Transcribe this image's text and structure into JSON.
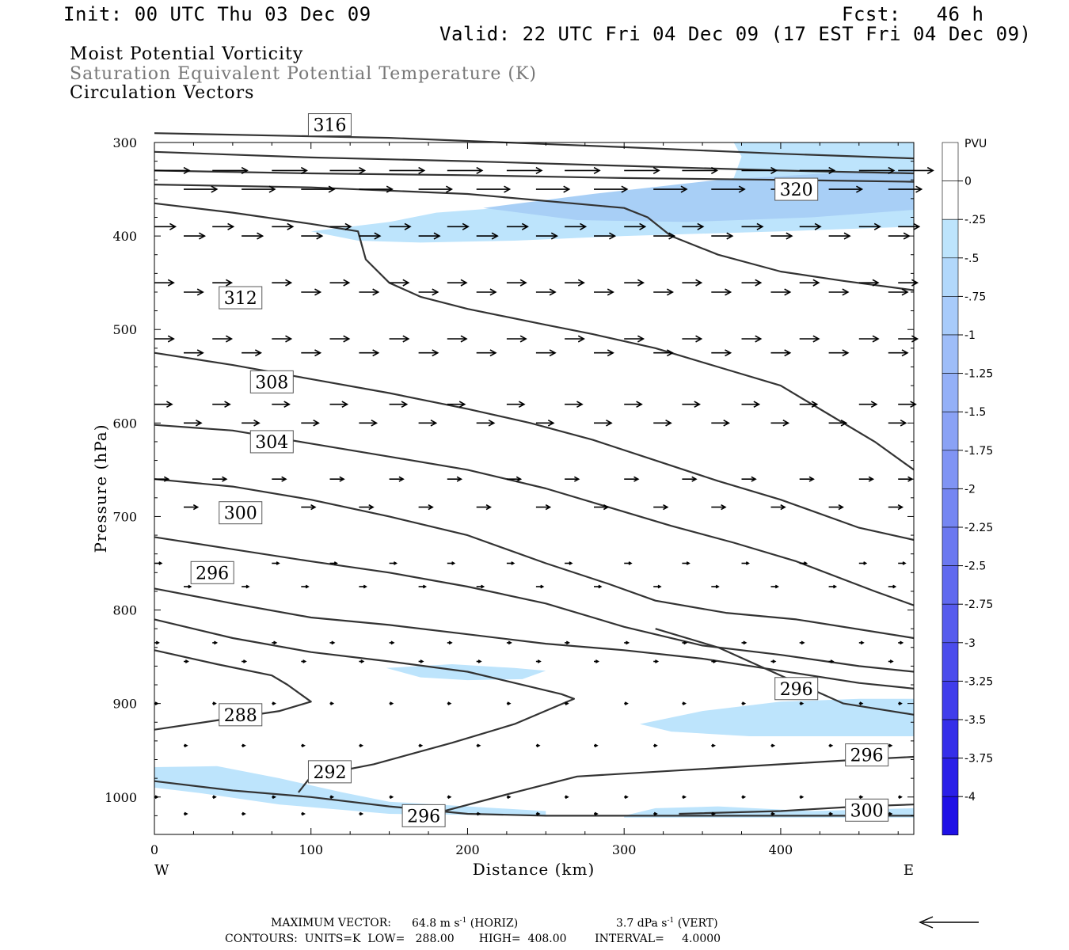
{
  "header": {
    "init": "Init: 00 UTC Thu 03 Dec 09",
    "fcst": "Fcst:   46 h",
    "valid": "Valid: 22 UTC Fri 04 Dec 09 (17 EST Fri 04 Dec 09)"
  },
  "titles": {
    "line1": "Moist Potential Vorticity",
    "line2": "Saturation Equivalent Potential Temperature (K)",
    "line3": "Circulation Vectors"
  },
  "footer": {
    "max_vector_label": "MAXIMUM VECTOR:",
    "max_vector_horiz_value": "64.8 m s",
    "max_vector_horiz_exp": "-1",
    "max_vector_horiz_tag": "(HORIZ)",
    "max_vector_vert_value": "3.7 dPa s",
    "max_vector_vert_exp": "-1",
    "max_vector_vert_tag": "(VERT)",
    "contours": "CONTOURS:  UNITS=K  LOW=   288.00       HIGH=  408.00        INTERVAL=     4.0000"
  },
  "colors": {
    "contour": "#333333",
    "pv_shade_light": "#bde4fc",
    "pv_shade_mid": "#a8cff6"
  },
  "chart_data": {
    "type": "contour",
    "xlabel": "Distance (km)",
    "ylabel": "Pressure (hPa)",
    "x_ticks": [
      0,
      100,
      200,
      300,
      400
    ],
    "y_ticks": [
      300,
      400,
      500,
      600,
      700,
      800,
      900,
      1000
    ],
    "xlim": [
      0,
      485
    ],
    "ylim": [
      300,
      1040
    ],
    "y_inverted": true,
    "x_end_labels": {
      "left": "W",
      "right": "E"
    },
    "colorbar": {
      "title": "PVU",
      "ticks": [
        "0",
        "-.25",
        "-.5",
        "-.75",
        "-1",
        "-1.25",
        "-1.5",
        "-1.75",
        "-2",
        "-2.25",
        "-2.5",
        "-2.75",
        "-3",
        "-3.25",
        "-3.5",
        "-3.75",
        "-4"
      ],
      "colors": [
        "#ffffff",
        "#ffffff",
        "#bde4fc",
        "#b2d8fb",
        "#a8cbfa",
        "#9ebdf8",
        "#94b0f7",
        "#8aa2f5",
        "#8094f4",
        "#7586f2",
        "#6b78f0",
        "#6069ef",
        "#565bed",
        "#4b4cec",
        "#403deb",
        "#352ee9",
        "#2a1fe8",
        "#1f10e6"
      ]
    },
    "theta_es_contours": [
      {
        "level": 288,
        "label": "288",
        "label_at": [
          55,
          912
        ],
        "points": [
          [
            0,
            928
          ],
          [
            40,
            918
          ],
          [
            80,
            908
          ],
          [
            100,
            898
          ],
          [
            85,
            880
          ],
          [
            75,
            870
          ],
          [
            40,
            858
          ],
          [
            0,
            843
          ]
        ]
      },
      {
        "level": 292,
        "label": "292",
        "label_at": [
          112,
          973
        ],
        "points": [
          [
            92,
            995
          ],
          [
            100,
            978
          ],
          [
            140,
            965
          ],
          [
            190,
            942
          ],
          [
            230,
            922
          ],
          [
            268,
            895
          ],
          [
            260,
            890
          ],
          [
            200,
            866
          ],
          [
            150,
            855
          ],
          [
            100,
            845
          ],
          [
            50,
            830
          ],
          [
            0,
            810
          ]
        ]
      },
      {
        "level": 296,
        "label": "296",
        "label_at": [
          37,
          760
        ],
        "points": [
          [
            0,
            777
          ],
          [
            50,
            793
          ],
          [
            100,
            808
          ],
          [
            150,
            816
          ],
          [
            200,
            826
          ],
          [
            250,
            836
          ],
          [
            300,
            843
          ],
          [
            350,
            852
          ],
          [
            400,
            865
          ],
          [
            450,
            878
          ],
          [
            485,
            884
          ]
        ]
      },
      {
        "level": 296,
        "label": "296",
        "label_at": [
          410,
          884
        ],
        "points": [
          [
            320,
            820
          ],
          [
            360,
            840
          ],
          [
            400,
            870
          ],
          [
            440,
            900
          ],
          [
            485,
            912
          ]
        ]
      },
      {
        "level": 296,
        "label": "296",
        "label_at": [
          455,
          955
        ],
        "points": [
          [
            185,
            1015
          ],
          [
            230,
            995
          ],
          [
            270,
            978
          ],
          [
            330,
            972
          ],
          [
            400,
            965
          ],
          [
            450,
            960
          ],
          [
            485,
            957
          ]
        ]
      },
      {
        "level": 296,
        "label": "296",
        "label_at": [
          172,
          1020
        ],
        "points": [
          [
            0,
            983
          ],
          [
            50,
            993
          ],
          [
            100,
            1000
          ],
          [
            150,
            1010
          ],
          [
            200,
            1018
          ],
          [
            250,
            1020
          ],
          [
            300,
            1020
          ],
          [
            485,
            1020
          ]
        ]
      },
      {
        "level": 300,
        "label": "300",
        "label_at": [
          55,
          696
        ],
        "points": [
          [
            0,
            722
          ],
          [
            50,
            735
          ],
          [
            100,
            748
          ],
          [
            150,
            760
          ],
          [
            200,
            775
          ],
          [
            250,
            793
          ],
          [
            300,
            818
          ],
          [
            350,
            838
          ],
          [
            400,
            848
          ],
          [
            450,
            860
          ],
          [
            485,
            866
          ]
        ]
      },
      {
        "level": 300,
        "label": "300",
        "label_at": [
          455,
          1014
        ],
        "points": [
          [
            335,
            1018
          ],
          [
            400,
            1015
          ],
          [
            450,
            1010
          ],
          [
            485,
            1008
          ]
        ]
      },
      {
        "level": 304,
        "label": "304",
        "label_at": [
          75,
          620
        ],
        "points": [
          [
            0,
            660
          ],
          [
            50,
            668
          ],
          [
            100,
            682
          ],
          [
            150,
            700
          ],
          [
            200,
            720
          ],
          [
            250,
            750
          ],
          [
            290,
            772
          ],
          [
            320,
            790
          ],
          [
            365,
            803
          ],
          [
            410,
            810
          ],
          [
            485,
            830
          ]
        ]
      },
      {
        "level": 308,
        "label": "308",
        "label_at": [
          75,
          556
        ],
        "points": [
          [
            0,
            602
          ],
          [
            50,
            608
          ],
          [
            100,
            622
          ],
          [
            150,
            636
          ],
          [
            200,
            650
          ],
          [
            250,
            670
          ],
          [
            290,
            690
          ],
          [
            330,
            710
          ],
          [
            370,
            728
          ],
          [
            410,
            748
          ],
          [
            460,
            780
          ],
          [
            485,
            795
          ]
        ]
      },
      {
        "level": 312,
        "label": "312",
        "label_at": [
          55,
          466
        ],
        "points": [
          [
            0,
            525
          ],
          [
            50,
            538
          ],
          [
            100,
            553
          ],
          [
            150,
            568
          ],
          [
            200,
            585
          ],
          [
            240,
            600
          ],
          [
            280,
            618
          ],
          [
            320,
            640
          ],
          [
            360,
            662
          ],
          [
            400,
            682
          ],
          [
            450,
            712
          ],
          [
            485,
            725
          ]
        ]
      },
      {
        "level": 316,
        "label": "316",
        "label_at": [
          112,
          281
        ],
        "points": [
          [
            0,
            365
          ],
          [
            50,
            375
          ],
          [
            100,
            387
          ],
          [
            130,
            395
          ],
          [
            135,
            425
          ],
          [
            150,
            450
          ],
          [
            170,
            465
          ],
          [
            200,
            478
          ],
          [
            250,
            495
          ],
          [
            280,
            505
          ],
          [
            320,
            520
          ],
          [
            360,
            540
          ],
          [
            400,
            560
          ],
          [
            430,
            590
          ],
          [
            460,
            620
          ],
          [
            485,
            650
          ]
        ]
      },
      {
        "level": 320,
        "label": "320",
        "label_at": [
          410,
          350
        ],
        "points": [
          [
            0,
            345
          ],
          [
            100,
            348
          ],
          [
            200,
            355
          ],
          [
            300,
            370
          ],
          [
            315,
            380
          ],
          [
            330,
            400
          ],
          [
            360,
            420
          ],
          [
            400,
            438
          ],
          [
            440,
            448
          ],
          [
            485,
            458
          ]
        ]
      },
      {
        "level": 324,
        "label": "",
        "label_at": null,
        "points": [
          [
            0,
            330
          ],
          [
            100,
            333
          ],
          [
            200,
            335
          ],
          [
            300,
            338
          ],
          [
            400,
            340
          ],
          [
            485,
            342
          ]
        ]
      },
      {
        "level": 328,
        "label": "",
        "label_at": null,
        "points": [
          [
            0,
            310
          ],
          [
            100,
            316
          ],
          [
            200,
            320
          ],
          [
            300,
            325
          ],
          [
            400,
            330
          ],
          [
            485,
            333
          ]
        ]
      },
      {
        "level": 332,
        "label": "",
        "label_at": null,
        "points": [
          [
            0,
            290
          ],
          [
            150,
            295
          ],
          [
            300,
            305
          ],
          [
            400,
            312
          ],
          [
            485,
            317
          ]
        ]
      }
    ],
    "pv_regions": [
      {
        "max_pvu": -0.25,
        "points": [
          [
            370,
            300
          ],
          [
            485,
            300
          ],
          [
            485,
            390
          ],
          [
            400,
            395
          ],
          [
            300,
            400
          ],
          [
            230,
            405
          ],
          [
            170,
            407
          ],
          [
            130,
            405
          ],
          [
            100,
            395
          ],
          [
            150,
            385
          ],
          [
            180,
            375
          ],
          [
            220,
            370
          ],
          [
            300,
            360
          ],
          [
            370,
            338
          ],
          [
            375,
            315
          ]
        ]
      },
      {
        "max_pvu": -0.5,
        "points": [
          [
            210,
            370
          ],
          [
            280,
            355
          ],
          [
            360,
            340
          ],
          [
            440,
            332
          ],
          [
            485,
            330
          ],
          [
            485,
            372
          ],
          [
            420,
            380
          ],
          [
            340,
            385
          ],
          [
            270,
            383
          ]
        ]
      },
      {
        "max_pvu": -0.25,
        "points": [
          [
            148,
            862
          ],
          [
            190,
            858
          ],
          [
            230,
            862
          ],
          [
            250,
            865
          ],
          [
            235,
            874
          ],
          [
            200,
            875
          ],
          [
            170,
            872
          ]
        ]
      },
      {
        "max_pvu": -0.25,
        "points": [
          [
            310,
            922
          ],
          [
            350,
            908
          ],
          [
            400,
            898
          ],
          [
            450,
            895
          ],
          [
            485,
            895
          ],
          [
            485,
            935
          ],
          [
            440,
            935
          ],
          [
            380,
            935
          ],
          [
            330,
            930
          ]
        ]
      },
      {
        "max_pvu": -0.25,
        "points": [
          [
            0,
            968
          ],
          [
            40,
            967
          ],
          [
            80,
            980
          ],
          [
            120,
            995
          ],
          [
            150,
            1005
          ],
          [
            200,
            1010
          ],
          [
            250,
            1015
          ],
          [
            250,
            1020
          ],
          [
            150,
            1018
          ],
          [
            80,
            1008
          ],
          [
            30,
            996
          ],
          [
            0,
            990
          ]
        ]
      },
      {
        "max_pvu": -0.25,
        "points": [
          [
            300,
            1020
          ],
          [
            320,
            1012
          ],
          [
            360,
            1010
          ],
          [
            420,
            1015
          ],
          [
            485,
            1012
          ],
          [
            485,
            1022
          ],
          [
            300,
            1022
          ]
        ]
      }
    ],
    "circulation_vectors": {
      "levels_hpa": [
        330,
        350,
        390,
        400,
        450,
        460,
        510,
        525,
        580,
        600,
        660,
        690,
        750,
        775,
        835,
        855,
        900,
        945,
        1000,
        1018
      ],
      "x_km": [
        0,
        37,
        75,
        112,
        150,
        187,
        225,
        262,
        300,
        337,
        375,
        412,
        450,
        475
      ],
      "u_by_level": [
        1.0,
        0.95,
        0.6,
        0.6,
        0.55,
        0.55,
        0.55,
        0.55,
        0.5,
        0.5,
        0.4,
        0.4,
        0.2,
        0.2,
        0.12,
        0.12,
        0.08,
        0.08,
        0.05,
        0.05
      ]
    },
    "reference_vector": {
      "direction": "west",
      "magnitude": "64.8 m s-1"
    }
  }
}
